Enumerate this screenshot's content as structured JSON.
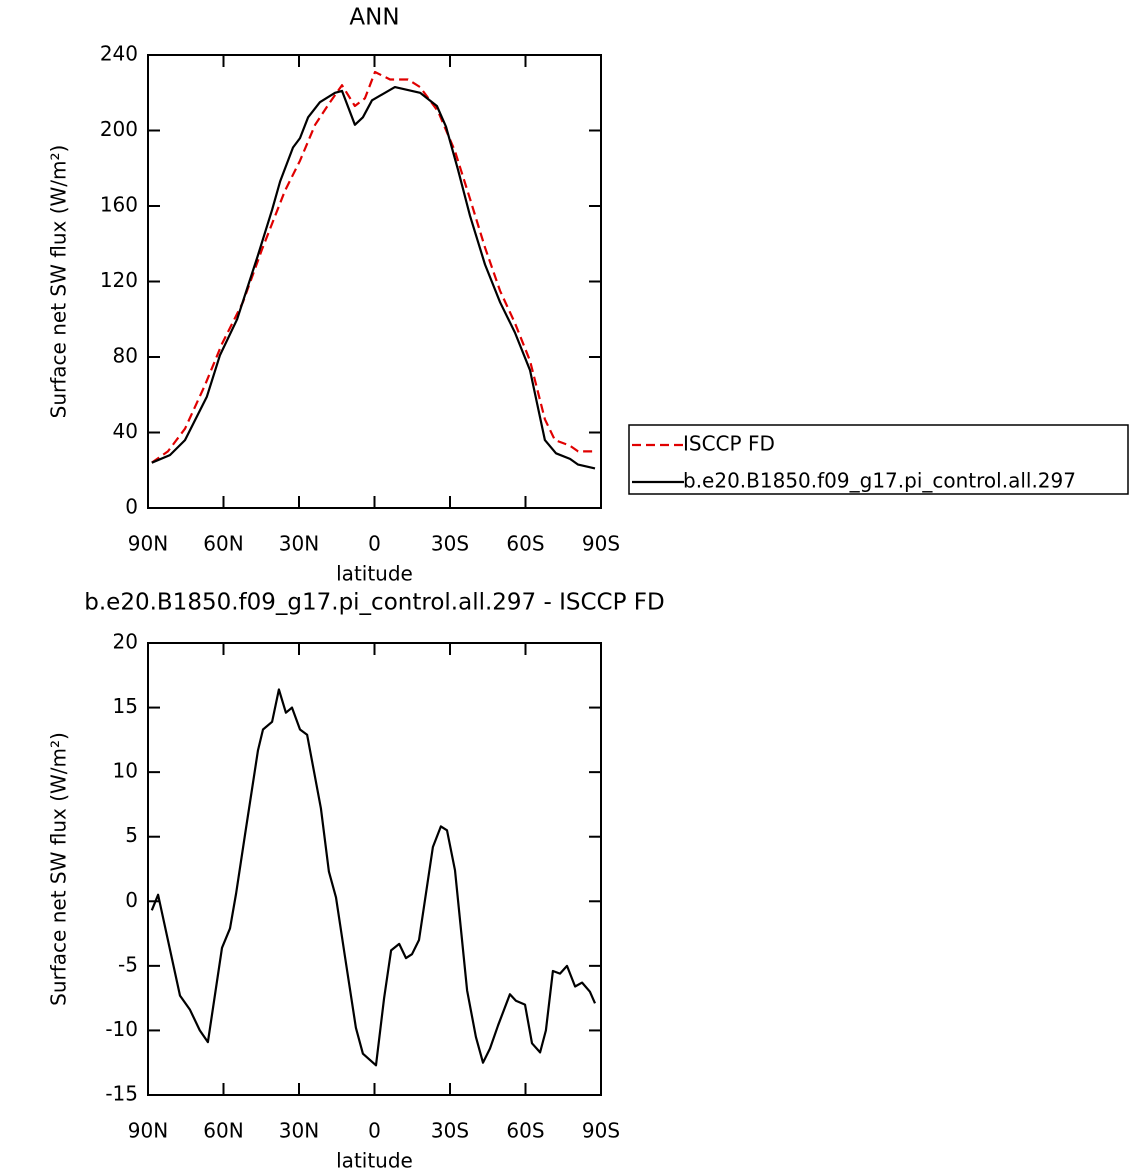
{
  "chart_data": [
    {
      "type": "line",
      "title": "ANN",
      "xlabel": "latitude",
      "ylabel": "Surface net SW flux (W/m²)",
      "xlim": [
        90,
        -90
      ],
      "xticks": [
        {
          "value": 90,
          "label": "90N"
        },
        {
          "value": 60,
          "label": "60N"
        },
        {
          "value": 30,
          "label": "30N"
        },
        0,
        {
          "value": -30,
          "label": "30S"
        },
        {
          "value": -60,
          "label": "60S"
        },
        {
          "value": -90,
          "label": "90S"
        }
      ],
      "ylim": [
        0,
        240
      ],
      "yticks": [
        0,
        40,
        80,
        120,
        160,
        200,
        240
      ],
      "legend": "outside-right",
      "series": [
        {
          "name": "ISCCP FD",
          "color": "#e00000",
          "dash": true,
          "x": [
            88.5,
            82.1,
            75.3,
            67.4,
            60.6,
            52.3,
            44.7,
            35.6,
            29.6,
            23.6,
            17.7,
            12.9,
            7.8,
            3.8,
            -0.2,
            -6.2,
            -13.3,
            -18.1,
            -25.3,
            -32.0,
            -37.9,
            -43.9,
            -49.9,
            -55.8,
            -61.8,
            -67.7,
            -71.7,
            -77.7,
            -80.9,
            -87.6
          ],
          "values": [
            24,
            30,
            42,
            65,
            87,
            109,
            137,
            168,
            184,
            203,
            215,
            224,
            213,
            217,
            231,
            227,
            227,
            223,
            210,
            189,
            164,
            138,
            115,
            98,
            78,
            47,
            36,
            33,
            30,
            30
          ]
        },
        {
          "name": "b.e20.B1850.f09_g17.pi_control.all.297",
          "color": "#000000",
          "dash": false,
          "x": [
            88.5,
            81.3,
            75.3,
            66.6,
            61.4,
            54.6,
            46.3,
            40.7,
            37.5,
            32.4,
            29.6,
            26.4,
            21.7,
            15.7,
            12.9,
            7.8,
            4.6,
            1.0,
            -8.1,
            -18.1,
            -24.8,
            -28.4,
            -33.2,
            -37.9,
            -43.9,
            -49.9,
            -55.8,
            -61.8,
            -67.7,
            -72.1,
            -77.7,
            -80.9,
            -87.6
          ],
          "values": [
            24,
            28,
            36,
            59,
            81,
            100,
            134,
            158,
            173,
            191,
            196,
            207,
            215,
            220,
            221,
            203,
            207,
            216,
            223,
            220,
            213,
            202,
            179,
            155,
            129,
            109,
            93,
            73,
            36,
            29,
            26,
            23,
            21
          ]
        }
      ]
    },
    {
      "type": "line",
      "title": "b.e20.B1850.f09_g17.pi_control.all.297 - ISCCP FD",
      "xlabel": "latitude",
      "ylabel": "Surface net SW flux (W/m²)",
      "xlim": [
        90,
        -90
      ],
      "xticks": [
        {
          "value": 90,
          "label": "90N"
        },
        {
          "value": 60,
          "label": "60N"
        },
        {
          "value": 30,
          "label": "30N"
        },
        0,
        {
          "value": -30,
          "label": "30S"
        },
        {
          "value": -60,
          "label": "60S"
        },
        {
          "value": -90,
          "label": "90S"
        }
      ],
      "ylim": [
        -15,
        20
      ],
      "yticks": [
        -15,
        -10,
        -5,
        0,
        5,
        10,
        15,
        20
      ],
      "series": [
        {
          "color": "#000000",
          "dash": false,
          "x": [
            88.5,
            86.0,
            82.1,
            77.3,
            73.3,
            69.4,
            66.2,
            60.6,
            57.4,
            55.0,
            51.5,
            46.3,
            44.3,
            40.7,
            38.0,
            35.2,
            32.8,
            29.6,
            26.8,
            21.3,
            18.1,
            15.3,
            11.8,
            7.4,
            4.6,
            -0.6,
            -3.8,
            -6.6,
            -9.8,
            -12.5,
            -14.9,
            -17.7,
            -23.2,
            -26.4,
            -28.8,
            -32.0,
            -36.8,
            -40.3,
            -43.1,
            -45.9,
            -49.1,
            -53.8,
            -56.2,
            -59.8,
            -62.6,
            -65.8,
            -68.1,
            -70.9,
            -73.7,
            -76.5,
            -79.7,
            -82.5,
            -85.6,
            -87.6
          ],
          "values": [
            -0.7,
            0.5,
            -3,
            -7.3,
            -8.4,
            -10,
            -10.9,
            -3.6,
            -2.1,
            0.6,
            5.1,
            11.7,
            13.3,
            13.9,
            16.4,
            14.6,
            15,
            13.3,
            12.9,
            7.2,
            2.3,
            0.3,
            -4.2,
            -9.8,
            -11.8,
            -12.7,
            -7.5,
            -3.8,
            -3.3,
            -4.4,
            -4.1,
            -3,
            4.2,
            5.8,
            5.5,
            2.4,
            -6.9,
            -10.5,
            -12.5,
            -11.4,
            -9.6,
            -7.2,
            -7.7,
            -8,
            -11,
            -11.7,
            -10,
            -5.4,
            -5.6,
            -5,
            -6.6,
            -6.3,
            -7,
            -7.9
          ]
        }
      ]
    }
  ]
}
